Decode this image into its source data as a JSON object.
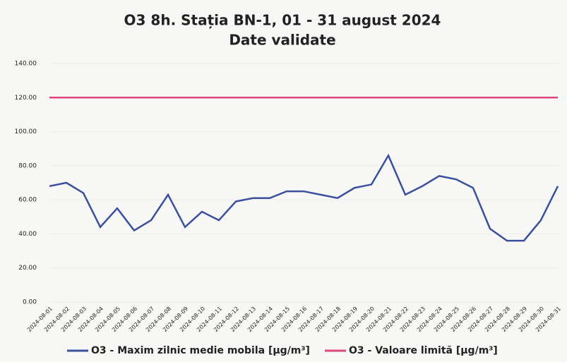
{
  "chart_data": {
    "type": "line",
    "title": "O3 8h. Stația BN-1, 01 - 31 august 2024",
    "subtitle": "Date validate",
    "categories": [
      "2024-08-01",
      "2024-08-02",
      "2024-08-03",
      "2024-08-04",
      "2024-08-05",
      "2024-08-06",
      "2024-08-07",
      "2024-08-08",
      "2024-08-09",
      "2024-08-10",
      "2024-08-11",
      "2024-08-12",
      "2024-08-13",
      "2024-08-14",
      "2024-08-15",
      "2024-08-16",
      "2024-08-17",
      "2024-08-18",
      "2024-08-19",
      "2024-08-20",
      "2024-08-21",
      "2024-08-22",
      "2024-08-23",
      "2024-08-24",
      "2024-08-25",
      "2024-08-26",
      "2024-08-27",
      "2024-08-28",
      "2024-08-29",
      "2024-08-30",
      "2024-08-31"
    ],
    "series": [
      {
        "name": "O3 - Maxim zilnic medie mobila [µg/m³]",
        "color": "#3a4f9e",
        "values": [
          68,
          70,
          64,
          44,
          55,
          42,
          48,
          63,
          44,
          53,
          48,
          59,
          61,
          61,
          65,
          65,
          63,
          61,
          67,
          69,
          86,
          63,
          68,
          74,
          72,
          67,
          43,
          36,
          36,
          48,
          68
        ]
      },
      {
        "name": "O3 - Valoare limită [µg/m³]",
        "color": "#e0457b",
        "values": [
          120,
          120,
          120,
          120,
          120,
          120,
          120,
          120,
          120,
          120,
          120,
          120,
          120,
          120,
          120,
          120,
          120,
          120,
          120,
          120,
          120,
          120,
          120,
          120,
          120,
          120,
          120,
          120,
          120,
          120,
          120
        ]
      }
    ],
    "ylim": [
      0,
      140
    ],
    "yticks": [
      {
        "value": 0,
        "label": "0.00"
      },
      {
        "value": 20,
        "label": "20.00"
      },
      {
        "value": 40,
        "label": "40.00"
      },
      {
        "value": 60,
        "label": "60.00"
      },
      {
        "value": 80,
        "label": "80.00"
      },
      {
        "value": 100,
        "label": "100.00"
      },
      {
        "value": 120,
        "label": "120.00"
      },
      {
        "value": 140,
        "label": "140.00"
      }
    ],
    "legend": "bottom"
  }
}
